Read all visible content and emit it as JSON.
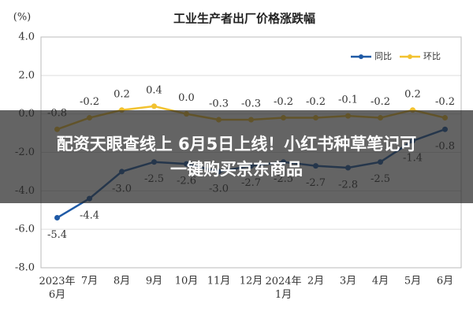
{
  "chart_data": {
    "type": "line",
    "title": "工业生产者出厂价格涨跌幅",
    "y_label": "(%)",
    "categories": [
      "2023年\n6月",
      "7月",
      "8月",
      "9月",
      "10月",
      "11月",
      "12月",
      "2024年\n1月",
      "2月",
      "3月",
      "4月",
      "5月",
      "6月"
    ],
    "series": [
      {
        "name": "同比",
        "color": "#1f5aa6",
        "values": [
          -5.4,
          -4.4,
          -3.0,
          -2.5,
          -2.6,
          -3.0,
          -2.7,
          -2.5,
          -2.7,
          -2.8,
          -2.5,
          -1.4,
          -0.8
        ],
        "value_labels": [
          "-5.4",
          "-4.4",
          "-3.0",
          "-2.5",
          "-2.6",
          "-3.0",
          "-2.7",
          "-2.5",
          "-2.7",
          "-2.8",
          "-2.5",
          "-1.4",
          "-0.8"
        ]
      },
      {
        "name": "环比",
        "color": "#f2c230",
        "values": [
          -0.8,
          -0.2,
          0.2,
          0.4,
          0.0,
          -0.3,
          -0.3,
          -0.2,
          -0.2,
          -0.1,
          -0.2,
          0.2,
          -0.2
        ],
        "value_labels": [
          "-0.8",
          "-0.2",
          "0.2",
          "0.4",
          "0.0",
          "-0.3",
          "-0.3",
          "-0.2",
          "-0.2",
          "-0.1",
          "-0.2",
          "0.2",
          "-0.2"
        ]
      }
    ],
    "ylim": [
      -8,
      4
    ],
    "yticks": [
      {
        "value": 4,
        "label": "4.0"
      },
      {
        "value": 2,
        "label": "2.0"
      },
      {
        "value": 0,
        "label": "0.0"
      },
      {
        "value": -2,
        "label": "-2.0"
      },
      {
        "value": -4,
        "label": "-4.0"
      },
      {
        "value": -6,
        "label": "-6.0"
      },
      {
        "value": -8,
        "label": "-8.0"
      }
    ],
    "grid": true,
    "legend": "upper right"
  },
  "overlay_text": "配资天眼查线上 6月5日上线！小红书种草笔记可一键购买京东商品"
}
